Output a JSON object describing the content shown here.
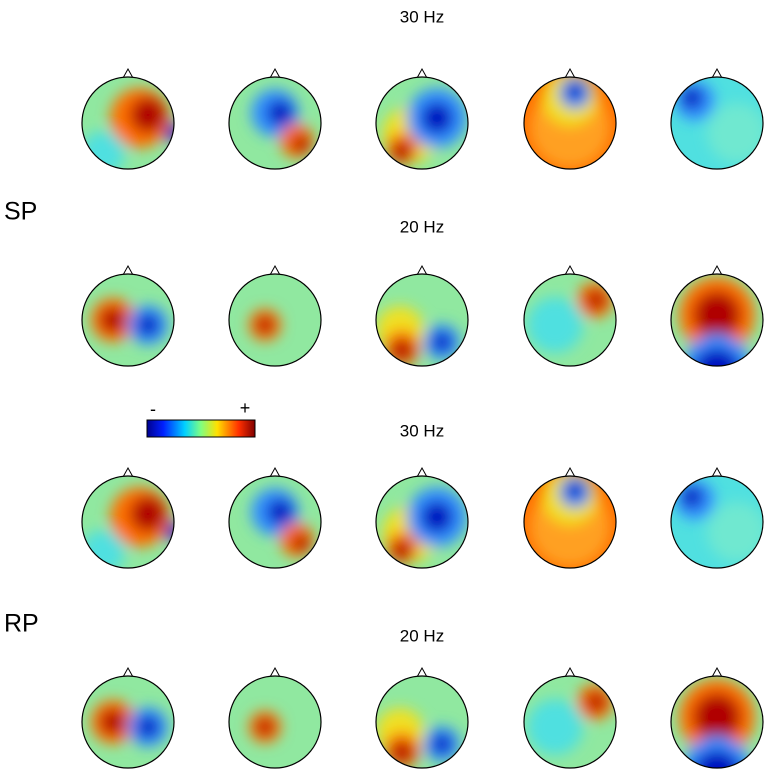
{
  "panels": [
    {
      "label": "SP",
      "rows": [
        {
          "title": "30 Hz"
        },
        {
          "title": "20 Hz"
        }
      ]
    },
    {
      "label": "RP",
      "rows": [
        {
          "title": "30 Hz"
        },
        {
          "title": "20 Hz"
        }
      ]
    }
  ],
  "colorbar": {
    "min_label": "-",
    "max_label": "+"
  }
}
